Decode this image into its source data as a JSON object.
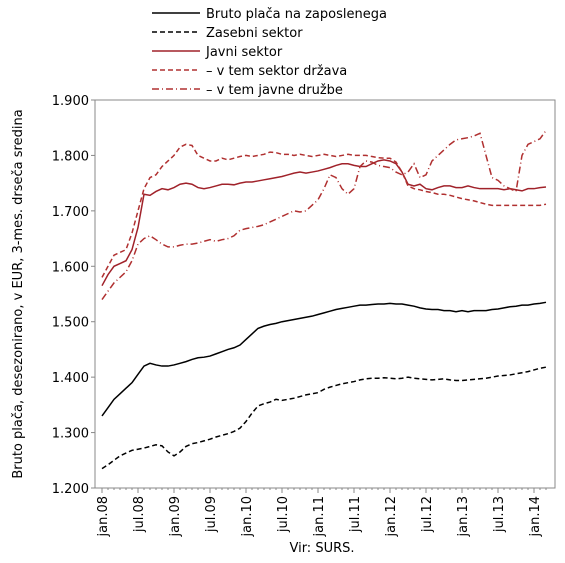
{
  "chart_data": {
    "type": "line",
    "y_label": "Bruto plača, desezonirano, v EUR, 3-mes. drseča sredina",
    "x_label": "Vir: SURS.",
    "categories": [
      "jan.08",
      null,
      null,
      null,
      null,
      null,
      "jul.08",
      null,
      null,
      null,
      null,
      null,
      "jan.09",
      null,
      null,
      null,
      null,
      null,
      "jul.09",
      null,
      null,
      null,
      null,
      null,
      "jan.10",
      null,
      null,
      null,
      null,
      null,
      "jul.10",
      null,
      null,
      null,
      null,
      null,
      "jan.11",
      null,
      null,
      null,
      null,
      null,
      "jul.11",
      null,
      null,
      null,
      null,
      null,
      "jan.12",
      null,
      null,
      null,
      null,
      null,
      "jul.12",
      null,
      null,
      null,
      null,
      null,
      "jan.13",
      null,
      null,
      null,
      null,
      null,
      "jul.13",
      null,
      null,
      null,
      null,
      null,
      "jan.14",
      null,
      null
    ],
    "ylim": [
      1200,
      1900
    ],
    "yticks": [
      {
        "value": 1200,
        "label": "1.200"
      },
      {
        "value": 1300,
        "label": "1.300"
      },
      {
        "value": 1400,
        "label": "1.400"
      },
      {
        "value": 1500,
        "label": "1.500"
      },
      {
        "value": 1600,
        "label": "1.600"
      },
      {
        "value": 1700,
        "label": "1.700"
      },
      {
        "value": 1800,
        "label": "1.800"
      },
      {
        "value": 1900,
        "label": "1.900"
      }
    ],
    "legend": "top",
    "series": [
      {
        "name": "Bruto plača na zaposlenega",
        "color": "#000000",
        "dash": "solid",
        "values": [
          1330,
          1345,
          1360,
          1370,
          1380,
          1390,
          1405,
          1420,
          1425,
          1422,
          1420,
          1420,
          1422,
          1425,
          1428,
          1432,
          1435,
          1436,
          1438,
          1442,
          1446,
          1450,
          1453,
          1458,
          1468,
          1478,
          1488,
          1492,
          1495,
          1497,
          1500,
          1502,
          1504,
          1506,
          1508,
          1510,
          1513,
          1516,
          1519,
          1522,
          1524,
          1526,
          1528,
          1530,
          1530,
          1531,
          1532,
          1532,
          1533,
          1532,
          1532,
          1530,
          1528,
          1525,
          1523,
          1522,
          1522,
          1520,
          1520,
          1518,
          1520,
          1518,
          1520,
          1520,
          1520,
          1522,
          1523,
          1525,
          1527,
          1528,
          1530,
          1530,
          1532,
          1533,
          1535
        ]
      },
      {
        "name": "Zasebni sektor",
        "color": "#000000",
        "dash": "dashed",
        "values": [
          1235,
          1242,
          1250,
          1258,
          1263,
          1268,
          1270,
          1272,
          1275,
          1278,
          1276,
          1265,
          1258,
          1265,
          1275,
          1280,
          1282,
          1285,
          1288,
          1292,
          1295,
          1298,
          1302,
          1308,
          1320,
          1335,
          1348,
          1352,
          1355,
          1360,
          1358,
          1360,
          1362,
          1365,
          1368,
          1370,
          1372,
          1378,
          1382,
          1385,
          1388,
          1390,
          1392,
          1395,
          1397,
          1398,
          1398,
          1399,
          1398,
          1397,
          1398,
          1400,
          1398,
          1397,
          1396,
          1395,
          1396,
          1397,
          1395,
          1394,
          1394,
          1395,
          1396,
          1397,
          1398,
          1400,
          1402,
          1403,
          1404,
          1406,
          1408,
          1410,
          1413,
          1416,
          1418
        ]
      },
      {
        "name": "Javni sektor",
        "color": "#a0222a",
        "dash": "solid",
        "values": [
          1565,
          1585,
          1600,
          1605,
          1610,
          1630,
          1670,
          1730,
          1728,
          1735,
          1740,
          1738,
          1742,
          1748,
          1750,
          1748,
          1742,
          1740,
          1742,
          1745,
          1748,
          1748,
          1747,
          1750,
          1752,
          1752,
          1754,
          1756,
          1758,
          1760,
          1762,
          1765,
          1768,
          1770,
          1768,
          1770,
          1772,
          1775,
          1778,
          1782,
          1785,
          1785,
          1782,
          1780,
          1780,
          1785,
          1790,
          1792,
          1790,
          1785,
          1770,
          1748,
          1745,
          1748,
          1740,
          1738,
          1742,
          1745,
          1745,
          1742,
          1742,
          1745,
          1742,
          1740,
          1740,
          1740,
          1740,
          1738,
          1740,
          1738,
          1736,
          1740,
          1740,
          1742,
          1743
        ]
      },
      {
        "name": "– v tem sektor država",
        "color": "#b03030",
        "dash": "dashed",
        "values": [
          1580,
          1600,
          1620,
          1625,
          1630,
          1660,
          1700,
          1740,
          1760,
          1765,
          1780,
          1790,
          1800,
          1815,
          1820,
          1818,
          1800,
          1795,
          1790,
          1790,
          1795,
          1792,
          1795,
          1798,
          1800,
          1798,
          1800,
          1802,
          1806,
          1805,
          1802,
          1802,
          1800,
          1802,
          1800,
          1798,
          1800,
          1802,
          1800,
          1798,
          1800,
          1802,
          1800,
          1800,
          1800,
          1798,
          1796,
          1795,
          1795,
          1788,
          1770,
          1745,
          1740,
          1738,
          1735,
          1733,
          1730,
          1730,
          1728,
          1725,
          1722,
          1720,
          1718,
          1715,
          1712,
          1710,
          1710,
          1710,
          1710,
          1710,
          1710,
          1710,
          1710,
          1710,
          1712
        ]
      },
      {
        "name": "– v tem javne družbe",
        "color": "#b03030",
        "dash": "dashdot",
        "values": [
          1540,
          1555,
          1570,
          1580,
          1590,
          1610,
          1640,
          1650,
          1655,
          1648,
          1640,
          1635,
          1635,
          1638,
          1640,
          1640,
          1642,
          1645,
          1648,
          1645,
          1648,
          1650,
          1655,
          1665,
          1668,
          1670,
          1672,
          1675,
          1680,
          1685,
          1690,
          1695,
          1700,
          1698,
          1700,
          1710,
          1720,
          1740,
          1765,
          1760,
          1740,
          1730,
          1740,
          1780,
          1790,
          1788,
          1782,
          1780,
          1778,
          1770,
          1765,
          1770,
          1785,
          1760,
          1765,
          1790,
          1800,
          1810,
          1820,
          1828,
          1830,
          1832,
          1835,
          1840,
          1800,
          1760,
          1755,
          1745,
          1740,
          1735,
          1800,
          1820,
          1825,
          1830,
          1845
        ]
      }
    ]
  }
}
